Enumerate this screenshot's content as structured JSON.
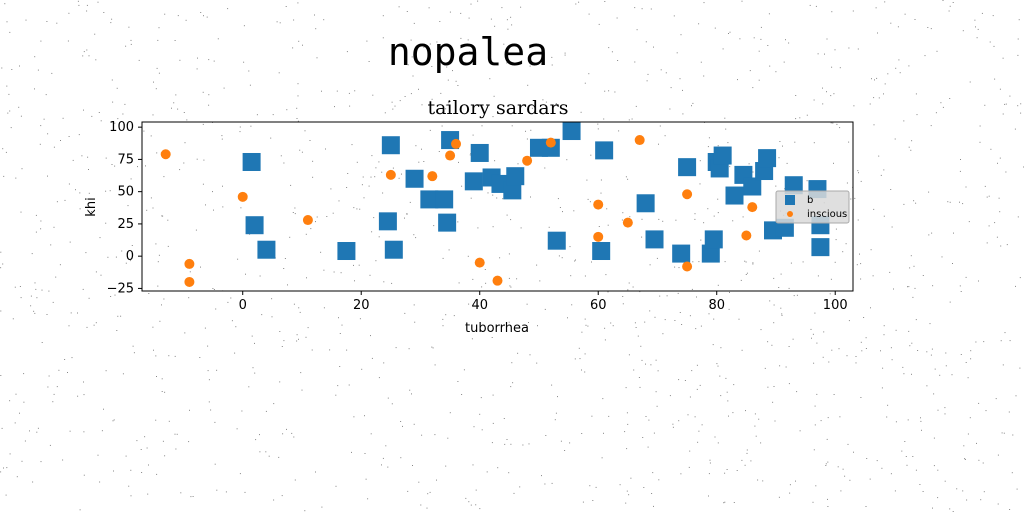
{
  "figure": {
    "suptitle": "nopalea"
  },
  "chart_data": {
    "type": "scatter",
    "title": "tailory sardars",
    "xlabel": "tuborrhea",
    "ylabel": "khi",
    "xlim": [
      -17,
      103
    ],
    "ylim": [
      -27,
      104
    ],
    "xticks": [
      0,
      20,
      40,
      60,
      80,
      100
    ],
    "yticks": [
      -25,
      0,
      25,
      50,
      75,
      100
    ],
    "grid": false,
    "legend_position": "center-right",
    "series": [
      {
        "name": "b",
        "marker": "square",
        "color": "#1f77b4",
        "points": [
          [
            1.5,
            73
          ],
          [
            2,
            24
          ],
          [
            4,
            5
          ],
          [
            17.5,
            4
          ],
          [
            24.5,
            27
          ],
          [
            25,
            86
          ],
          [
            25.5,
            5
          ],
          [
            29,
            60
          ],
          [
            31.5,
            44
          ],
          [
            34,
            44
          ],
          [
            34.5,
            26
          ],
          [
            35,
            90
          ],
          [
            39,
            58
          ],
          [
            40,
            80
          ],
          [
            42,
            61
          ],
          [
            43.5,
            56
          ],
          [
            45.5,
            51
          ],
          [
            46,
            62
          ],
          [
            50,
            84
          ],
          [
            52,
            84
          ],
          [
            53,
            12
          ],
          [
            55.5,
            97
          ],
          [
            60.5,
            4
          ],
          [
            61,
            82
          ],
          [
            68,
            41
          ],
          [
            69.5,
            13
          ],
          [
            74,
            2
          ],
          [
            75,
            69
          ],
          [
            79,
            2
          ],
          [
            79.5,
            13
          ],
          [
            80,
            73
          ],
          [
            80.5,
            68
          ],
          [
            81,
            78
          ],
          [
            83,
            47
          ],
          [
            84.5,
            63
          ],
          [
            86,
            54
          ],
          [
            88,
            66
          ],
          [
            88.5,
            76
          ],
          [
            89.5,
            20
          ],
          [
            91.5,
            22
          ],
          [
            93,
            55
          ],
          [
            97,
            52
          ],
          [
            97.5,
            24
          ],
          [
            97.5,
            7
          ]
        ]
      },
      {
        "name": "inscious",
        "marker": "circle",
        "color": "#ff7f0e",
        "points": [
          [
            -13,
            79
          ],
          [
            -9,
            -6
          ],
          [
            -9,
            -20
          ],
          [
            0,
            46
          ],
          [
            11,
            28
          ],
          [
            25,
            63
          ],
          [
            32,
            62
          ],
          [
            35,
            78
          ],
          [
            36,
            87
          ],
          [
            40,
            -5
          ],
          [
            43,
            -19
          ],
          [
            48,
            74
          ],
          [
            52,
            88
          ],
          [
            60,
            40
          ],
          [
            60,
            15
          ],
          [
            65,
            26
          ],
          [
            67,
            90
          ],
          [
            75,
            -8
          ],
          [
            75,
            48
          ],
          [
            85,
            16
          ],
          [
            86,
            38
          ]
        ]
      }
    ]
  }
}
